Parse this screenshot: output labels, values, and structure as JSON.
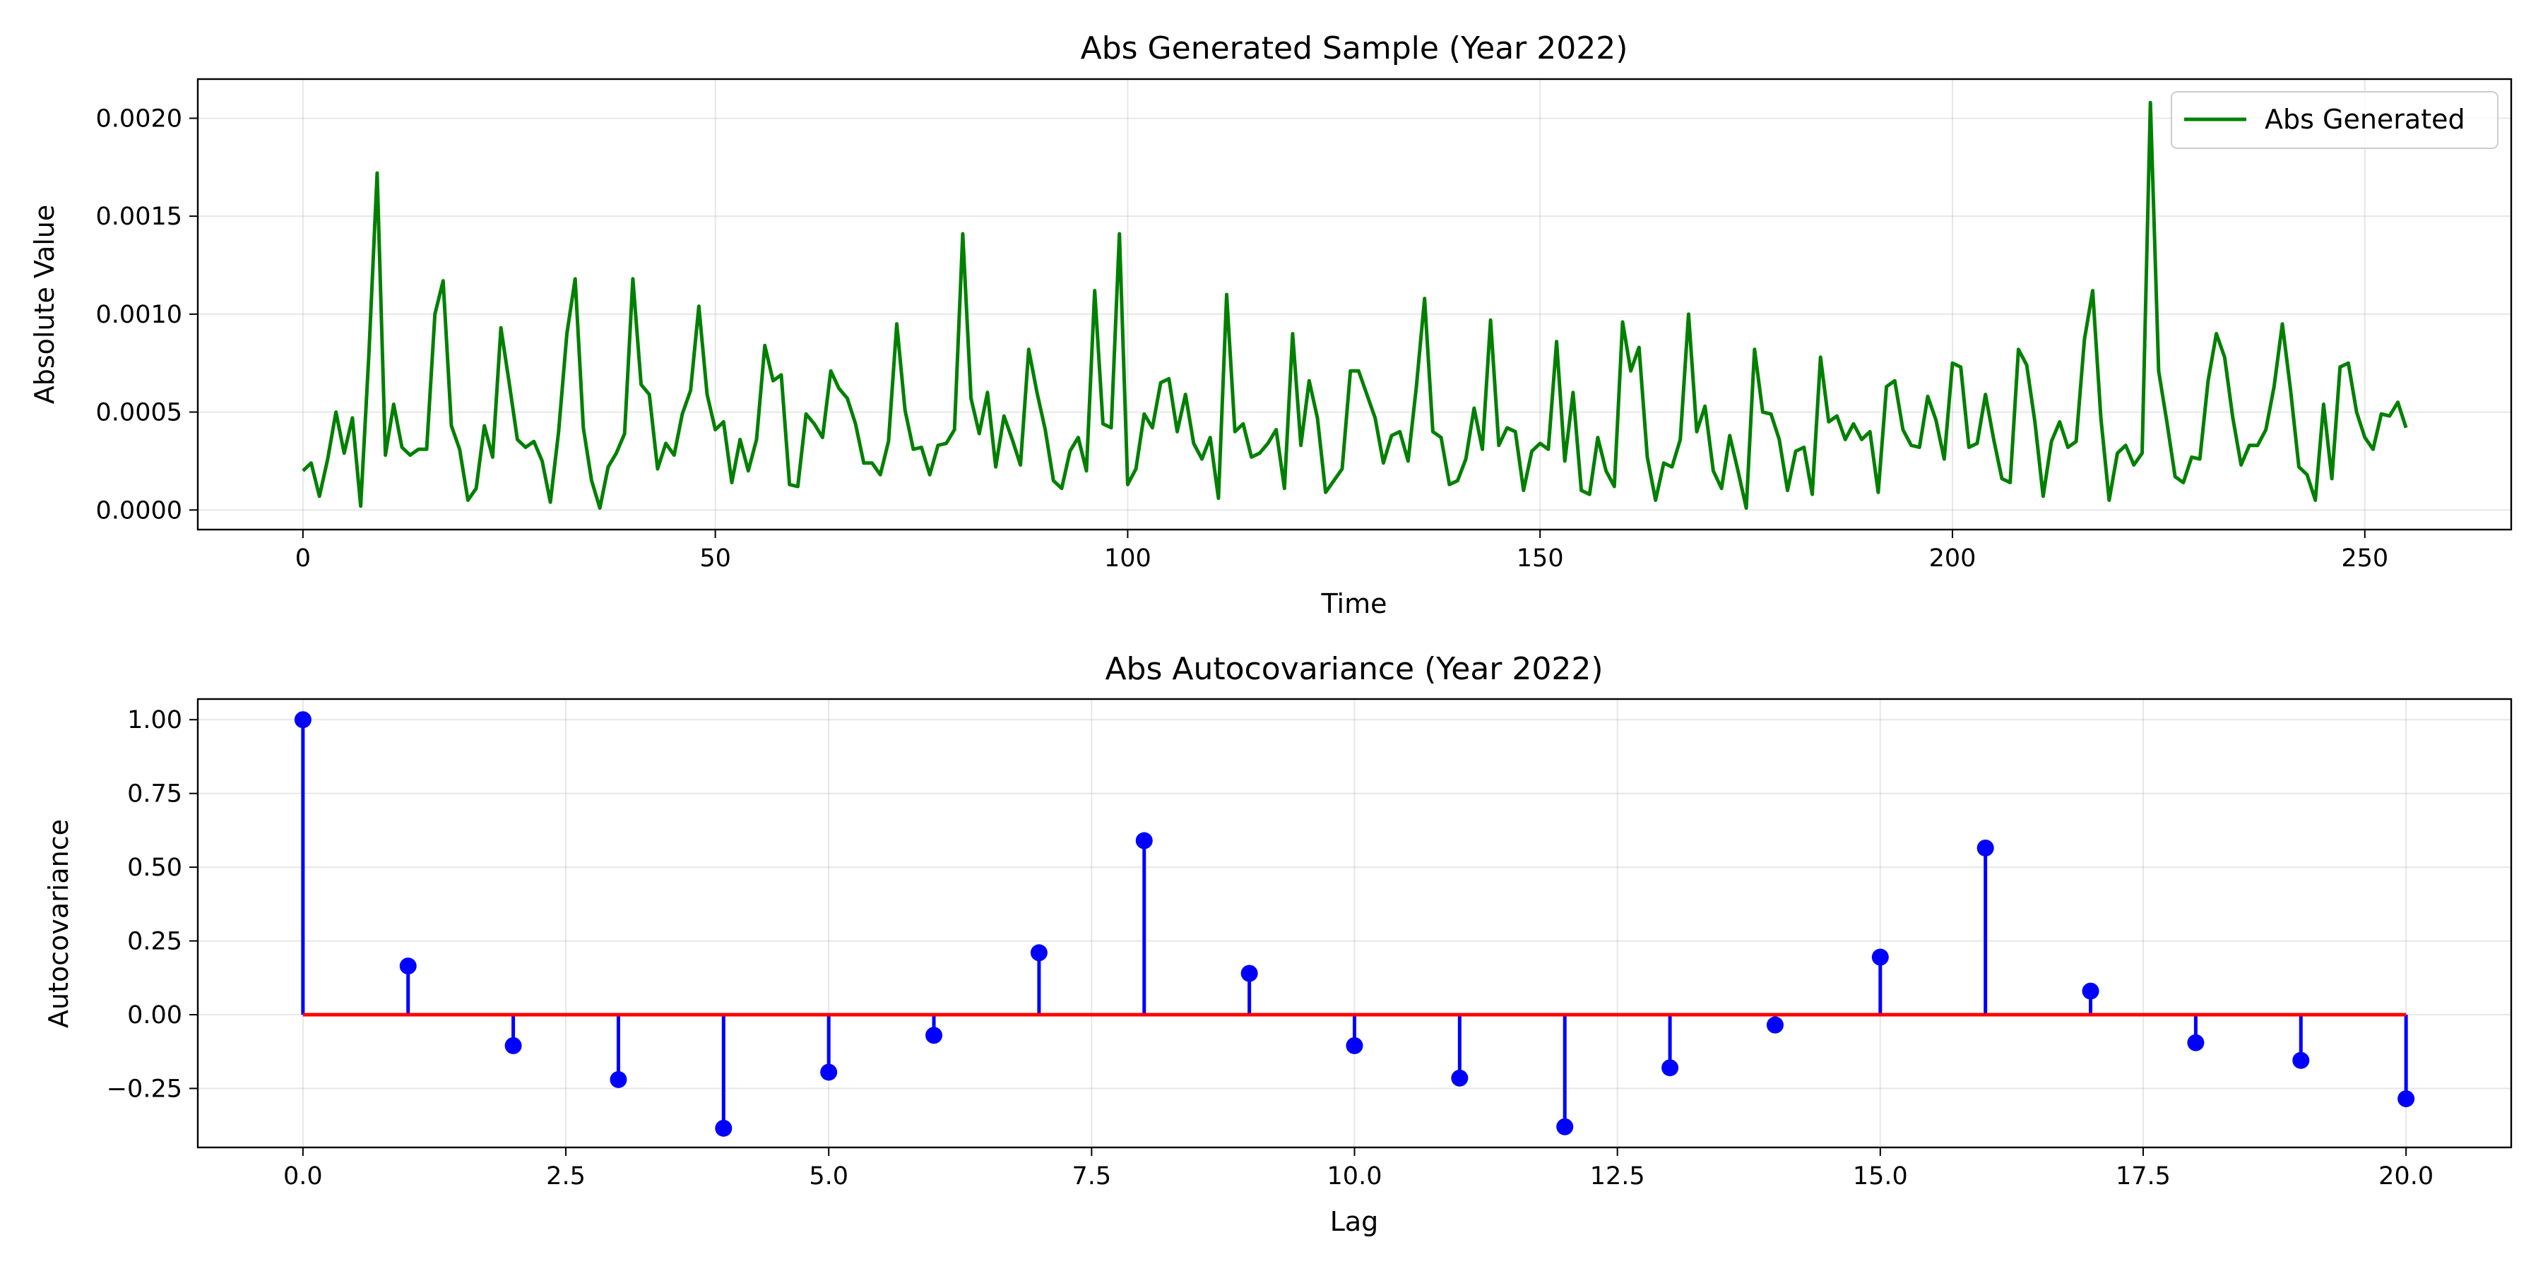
{
  "chart_data": [
    {
      "type": "line",
      "title": "Abs Generated Sample (Year 2022)",
      "xlabel": "Time",
      "ylabel": "Absolute Value",
      "xlim": [
        -12.75,
        267.75
      ],
      "ylim": [
        -0.0001,
        0.0022
      ],
      "xticks": [
        0,
        50,
        100,
        150,
        200,
        250
      ],
      "xtick_labels": [
        "0",
        "50",
        "100",
        "150",
        "200",
        "250"
      ],
      "yticks": [
        0,
        0.0005,
        0.001,
        0.0015,
        0.002
      ],
      "ytick_labels": [
        "0.0000",
        "0.0005",
        "0.0010",
        "0.0015",
        "0.0020"
      ],
      "grid": true,
      "legend": "upper right",
      "series": [
        {
          "name": "Abs Generated",
          "color": "#008000",
          "y": [
            0.0002,
            0.00024,
            7e-05,
            0.00026,
            0.0005,
            0.00029,
            0.00047,
            2e-05,
            0.0008,
            0.00172,
            0.00028,
            0.00054,
            0.00032,
            0.00028,
            0.00031,
            0.00031,
            0.001,
            0.00117,
            0.00043,
            0.00031,
            5e-05,
            0.00011,
            0.00043,
            0.00027,
            0.00093,
            0.00065,
            0.00036,
            0.00032,
            0.00035,
            0.00025,
            4e-05,
            0.0004,
            0.0009,
            0.00118,
            0.00042,
            0.00015,
            1e-05,
            0.00022,
            0.00029,
            0.00039,
            0.00118,
            0.00064,
            0.00059,
            0.00021,
            0.00034,
            0.00028,
            0.00049,
            0.00061,
            0.00104,
            0.00059,
            0.00041,
            0.00045,
            0.00014,
            0.00036,
            0.0002,
            0.00036,
            0.00084,
            0.00066,
            0.00069,
            0.00013,
            0.00012,
            0.00049,
            0.00044,
            0.00037,
            0.00071,
            0.00062,
            0.00057,
            0.00044,
            0.00024,
            0.00024,
            0.00018,
            0.00035,
            0.00095,
            0.00051,
            0.00031,
            0.00032,
            0.00018,
            0.00033,
            0.00034,
            0.00041,
            0.00141,
            0.00057,
            0.00039,
            0.0006,
            0.00022,
            0.00048,
            0.00036,
            0.00023,
            0.00082,
            0.0006,
            0.00041,
            0.00015,
            0.00011,
            0.0003,
            0.00037,
            0.0002,
            0.00112,
            0.00044,
            0.00042,
            0.00141,
            0.00013,
            0.00021,
            0.00049,
            0.00042,
            0.00065,
            0.00067,
            0.0004,
            0.00059,
            0.00034,
            0.00026,
            0.00037,
            6e-05,
            0.0011,
            0.0004,
            0.00044,
            0.00027,
            0.00029,
            0.00034,
            0.00041,
            0.00011,
            0.0009,
            0.00033,
            0.00066,
            0.00047,
            9e-05,
            0.00015,
            0.00021,
            0.00071,
            0.00071,
            0.00059,
            0.00047,
            0.00024,
            0.00038,
            0.0004,
            0.00025,
            0.00063,
            0.00108,
            0.0004,
            0.00037,
            0.00013,
            0.00015,
            0.00026,
            0.00052,
            0.00031,
            0.00097,
            0.00033,
            0.00042,
            0.0004,
            0.0001,
            0.0003,
            0.00034,
            0.00031,
            0.00086,
            0.00025,
            0.0006,
            0.0001,
            8e-05,
            0.00037,
            0.0002,
            0.00012,
            0.00096,
            0.00071,
            0.00083,
            0.00027,
            5e-05,
            0.00024,
            0.00022,
            0.00036,
            0.001,
            0.0004,
            0.00053,
            0.0002,
            0.00011,
            0.00038,
            0.0002,
            1e-05,
            0.00082,
            0.0005,
            0.00049,
            0.00036,
            0.0001,
            0.0003,
            0.00032,
            8e-05,
            0.00078,
            0.00045,
            0.00048,
            0.00036,
            0.00044,
            0.00036,
            0.0004,
            9e-05,
            0.00063,
            0.00066,
            0.00041,
            0.00033,
            0.00032,
            0.00058,
            0.00046,
            0.00026,
            0.00075,
            0.00073,
            0.00032,
            0.00034,
            0.00059,
            0.00036,
            0.00016,
            0.00014,
            0.00082,
            0.00074,
            0.00045,
            7e-05,
            0.00035,
            0.00045,
            0.00032,
            0.00035,
            0.00087,
            0.00112,
            0.00047,
            5e-05,
            0.00029,
            0.00033,
            0.00023,
            0.00029,
            0.00208,
            0.00071,
            0.00045,
            0.00017,
            0.00014,
            0.00027,
            0.00026,
            0.00066,
            0.0009,
            0.00078,
            0.00047,
            0.00023,
            0.00033,
            0.00033,
            0.00041,
            0.00063,
            0.00095,
            0.00061,
            0.00022,
            0.00018,
            5e-05,
            0.00054,
            0.00016,
            0.00073,
            0.00075,
            0.0005,
            0.00037,
            0.00031,
            0.00049,
            0.00048,
            0.00055,
            0.00042
          ]
        }
      ]
    },
    {
      "type": "stem",
      "title": "Abs Autocovariance (Year 2022)",
      "xlabel": "Lag",
      "ylabel": "Autocovariance",
      "xlim": [
        -1,
        21
      ],
      "ylim": [
        -0.45,
        1.07
      ],
      "xticks": [
        0,
        2.5,
        5,
        7.5,
        10,
        12.5,
        15,
        17.5,
        20
      ],
      "xtick_labels": [
        "0.0",
        "2.5",
        "5.0",
        "7.5",
        "10.0",
        "12.5",
        "15.0",
        "17.5",
        "20.0"
      ],
      "yticks": [
        -0.25,
        0,
        0.25,
        0.5,
        0.75,
        1.0
      ],
      "ytick_labels": [
        "−0.25",
        "0.00",
        "0.25",
        "0.50",
        "0.75",
        "1.00"
      ],
      "grid": true,
      "stem_color": "#0000ff",
      "baseline_color": "#ff0000",
      "x": [
        0,
        1,
        2,
        3,
        4,
        5,
        6,
        7,
        8,
        9,
        10,
        11,
        12,
        13,
        14,
        15,
        16,
        17,
        18,
        19,
        20
      ],
      "values": [
        1.0,
        0.165,
        -0.105,
        -0.22,
        -0.385,
        -0.195,
        -0.07,
        0.21,
        0.59,
        0.14,
        -0.105,
        -0.215,
        -0.38,
        -0.18,
        -0.035,
        0.195,
        0.565,
        0.08,
        -0.095,
        -0.155,
        -0.285
      ]
    }
  ]
}
